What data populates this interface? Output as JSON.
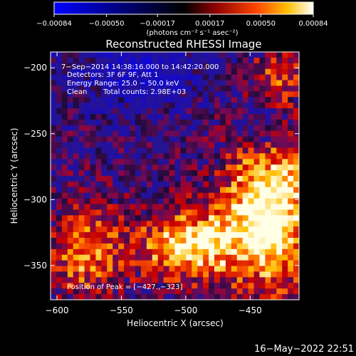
{
  "chart_data": {
    "type": "heatmap",
    "title": "Reconstructed RHESSI Image",
    "xlabel": "Heliocentric X (arcsec)",
    "ylabel": "Heliocentric Y (arcsec)",
    "xlim": [
      -605,
      -412
    ],
    "ylim": [
      -376,
      -188
    ],
    "x_ticks": [
      -600,
      -550,
      -500,
      -450
    ],
    "x_tick_labels": [
      "−600",
      "−550",
      "−500",
      "−450"
    ],
    "y_ticks": [
      -200,
      -250,
      -300,
      -350
    ],
    "y_tick_labels": [
      "−200",
      "−250",
      "−300",
      "−350"
    ],
    "colorbar": {
      "range": [
        -0.00084,
        0.00084
      ],
      "tick_values": [
        -0.00084,
        -0.0005,
        -0.00017,
        0.00017,
        0.0005,
        0.00084
      ],
      "tick_labels": [
        "−0.00084",
        "−0.00050",
        "−0.00017",
        "0.00017",
        "0.00050",
        "0.00084"
      ],
      "units_label": "(photons cm⁻² s⁻¹ asec⁻²)"
    },
    "annotations": {
      "time_range": "7−Sep−2014 14:38:16.000 to 14:42:20.000",
      "detectors": "Detectors: 3F 6F 9F, Att 1",
      "energy_range": "Energy Range: 25.0 − 50.0 keV",
      "method": "Clean",
      "total_counts": "Total counts: 2.98E+03",
      "peak_position": "Position of Peak = [−427.,−323]"
    },
    "grid": false,
    "peak": [
      -427,
      -323
    ]
  },
  "footer": {
    "timestamp": "16−May−2022 22:51"
  }
}
